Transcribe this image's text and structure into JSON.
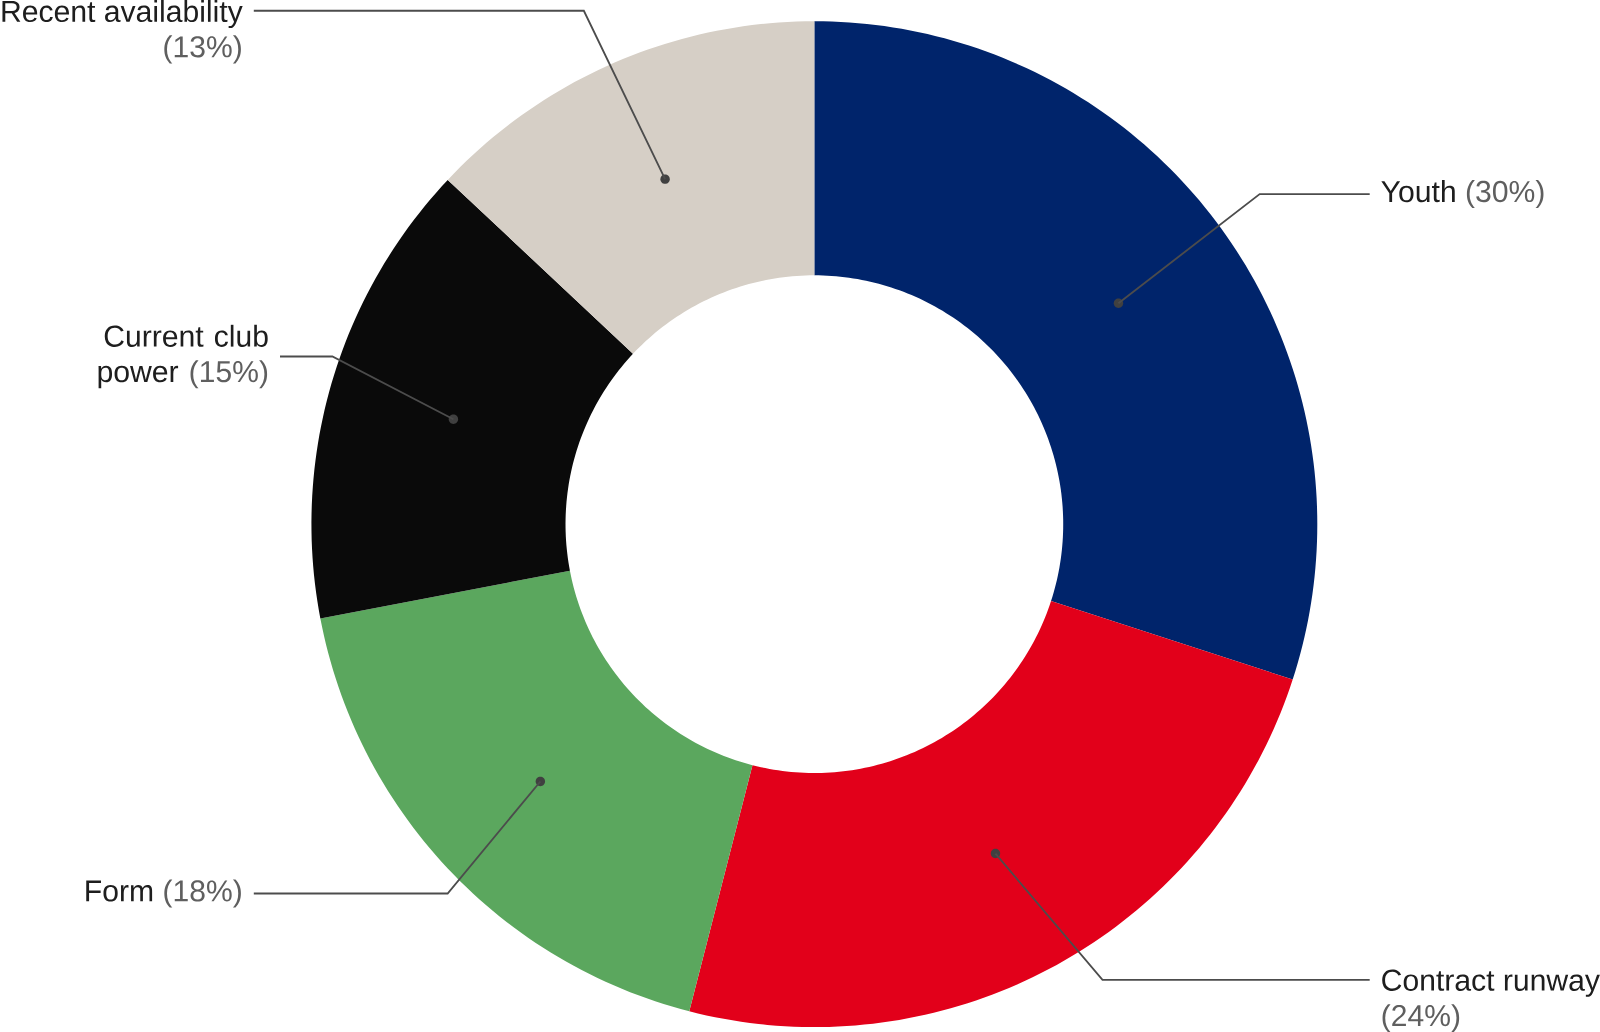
{
  "chart_data": {
    "type": "donut",
    "categories": [
      "Youth",
      "Contract runway",
      "Form",
      "Current club power",
      "Recent availability"
    ],
    "values": [
      30,
      24,
      18,
      15,
      13
    ],
    "colors": [
      "#00246b",
      "#e2001a",
      "#5ba75e",
      "#0a0a0a",
      "#d6cfc6"
    ],
    "value_labels": [
      "(30%)",
      "(24%)",
      "(18%)",
      "(15%)",
      "(13%)"
    ]
  }
}
